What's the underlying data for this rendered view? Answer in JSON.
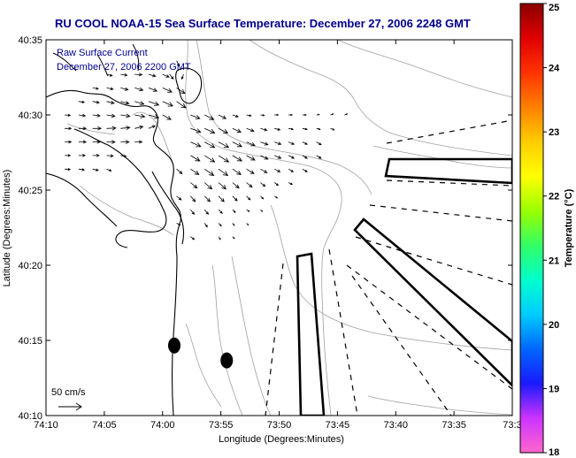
{
  "page": {
    "title": "RU COOL  NOAA-15  Sea Surface Temperature:  December 27, 2006 2248 GMT",
    "legend_line1": "Raw Surface Current",
    "legend_line2": "December 27, 2006 2200 GMT",
    "scale_label": "50 cm/s"
  },
  "chart_data": {
    "type": "quiver",
    "title": "RU COOL  NOAA-15  Sea Surface Temperature:  December 27, 2006 2248 GMT",
    "xlabel": "Longitude (Degrees:Minutes)",
    "ylabel": "Latitude (Degrees:Minutes)",
    "x_ticks": [
      "74:10",
      "74:05",
      "74:00",
      "73:55",
      "73:50",
      "73:45",
      "73:40",
      "73:35",
      "73:3"
    ],
    "y_ticks": [
      "40:10",
      "40:15",
      "40:20",
      "40:25",
      "40:30",
      "40:35"
    ],
    "xlim": [
      -74.1667,
      -73.5
    ],
    "ylim": [
      40.1667,
      40.5833
    ],
    "colorbar": {
      "label": "Temperature (°C)",
      "ticks": [
        "18",
        "19",
        "20",
        "21",
        "22",
        "23",
        "24",
        "25"
      ],
      "range": [
        18,
        25
      ],
      "colors": [
        "#ff66cc",
        "#cc33ff",
        "#1a1aff",
        "#0066ff",
        "#00ccff",
        "#00ffcc",
        "#33ff66",
        "#99ff00",
        "#ffff00",
        "#ffcc00",
        "#ff8000",
        "#ff3300",
        "#e00000",
        "#8b0000"
      ]
    },
    "vector_scale": {
      "label": "50 cm/s",
      "speed_cm_s": 50
    },
    "buoys": [
      {
        "lon": -73.9833,
        "lat": 40.2444
      },
      {
        "lon": -73.9083,
        "lat": 40.2278
      }
    ],
    "current_vectors": [
      {
        "lon": -74.08,
        "lat": 40.545,
        "u": 12,
        "v": -3
      },
      {
        "lon": -74.06,
        "lat": 40.545,
        "u": 14,
        "v": -2
      },
      {
        "lon": -74.04,
        "lat": 40.545,
        "u": 16,
        "v": -1
      },
      {
        "lon": -74.02,
        "lat": 40.545,
        "u": 15,
        "v": -4
      },
      {
        "lon": -74.0,
        "lat": 40.545,
        "u": 14,
        "v": -6
      },
      {
        "lon": -74.1,
        "lat": 40.53,
        "u": 12,
        "v": -2
      },
      {
        "lon": -74.08,
        "lat": 40.53,
        "u": 14,
        "v": -3
      },
      {
        "lon": -74.06,
        "lat": 40.53,
        "u": 16,
        "v": -4
      },
      {
        "lon": -74.04,
        "lat": 40.53,
        "u": 18,
        "v": -5
      },
      {
        "lon": -74.02,
        "lat": 40.53,
        "u": 18,
        "v": -7
      },
      {
        "lon": -74.0,
        "lat": 40.53,
        "u": 20,
        "v": -9
      },
      {
        "lon": -73.98,
        "lat": 40.53,
        "u": 18,
        "v": -12
      },
      {
        "lon": -74.12,
        "lat": 40.515,
        "u": 12,
        "v": -2
      },
      {
        "lon": -74.1,
        "lat": 40.515,
        "u": 14,
        "v": -3
      },
      {
        "lon": -74.08,
        "lat": 40.515,
        "u": 16,
        "v": -4
      },
      {
        "lon": -74.06,
        "lat": 40.515,
        "u": 18,
        "v": -5
      },
      {
        "lon": -74.04,
        "lat": 40.515,
        "u": 20,
        "v": -6
      },
      {
        "lon": -74.02,
        "lat": 40.515,
        "u": 22,
        "v": -8
      },
      {
        "lon": -74.0,
        "lat": 40.515,
        "u": 22,
        "v": -10
      },
      {
        "lon": -73.98,
        "lat": 40.515,
        "u": 20,
        "v": -14
      },
      {
        "lon": -74.14,
        "lat": 40.5,
        "u": 12,
        "v": -1
      },
      {
        "lon": -74.12,
        "lat": 40.5,
        "u": 14,
        "v": -2
      },
      {
        "lon": -74.1,
        "lat": 40.5,
        "u": 16,
        "v": -2
      },
      {
        "lon": -74.08,
        "lat": 40.5,
        "u": 18,
        "v": -3
      },
      {
        "lon": -74.06,
        "lat": 40.5,
        "u": 20,
        "v": -3
      },
      {
        "lon": -74.04,
        "lat": 40.5,
        "u": 22,
        "v": -4
      },
      {
        "lon": -74.02,
        "lat": 40.5,
        "u": 22,
        "v": -6
      },
      {
        "lon": -74.0,
        "lat": 40.5,
        "u": 18,
        "v": -10
      },
      {
        "lon": -74.14,
        "lat": 40.485,
        "u": 14,
        "v": 0
      },
      {
        "lon": -74.12,
        "lat": 40.485,
        "u": 16,
        "v": 0
      },
      {
        "lon": -74.1,
        "lat": 40.485,
        "u": 18,
        "v": 0
      },
      {
        "lon": -74.08,
        "lat": 40.485,
        "u": 20,
        "v": 1
      },
      {
        "lon": -74.06,
        "lat": 40.485,
        "u": 20,
        "v": 2
      },
      {
        "lon": -74.04,
        "lat": 40.485,
        "u": 18,
        "v": 4
      },
      {
        "lon": -74.02,
        "lat": 40.485,
        "u": 14,
        "v": 6
      },
      {
        "lon": -74.14,
        "lat": 40.47,
        "u": 14,
        "v": 0
      },
      {
        "lon": -74.12,
        "lat": 40.47,
        "u": 16,
        "v": 0
      },
      {
        "lon": -74.1,
        "lat": 40.47,
        "u": 16,
        "v": 0
      },
      {
        "lon": -74.08,
        "lat": 40.47,
        "u": 18,
        "v": 0
      },
      {
        "lon": -74.06,
        "lat": 40.47,
        "u": 18,
        "v": 0
      },
      {
        "lon": -74.04,
        "lat": 40.47,
        "u": 16,
        "v": 0
      },
      {
        "lon": -74.14,
        "lat": 40.455,
        "u": 12,
        "v": 0
      },
      {
        "lon": -74.12,
        "lat": 40.455,
        "u": 14,
        "v": 0
      },
      {
        "lon": -74.1,
        "lat": 40.455,
        "u": 14,
        "v": 0
      },
      {
        "lon": -74.08,
        "lat": 40.455,
        "u": 14,
        "v": -1
      },
      {
        "lon": -74.06,
        "lat": 40.455,
        "u": 12,
        "v": -2
      },
      {
        "lon": -74.14,
        "lat": 40.44,
        "u": 12,
        "v": -1
      },
      {
        "lon": -74.12,
        "lat": 40.44,
        "u": 12,
        "v": -2
      },
      {
        "lon": -74.1,
        "lat": 40.44,
        "u": 12,
        "v": -3
      },
      {
        "lon": -74.08,
        "lat": 40.44,
        "u": 10,
        "v": -4
      },
      {
        "lon": -73.96,
        "lat": 40.5,
        "u": 20,
        "v": -8
      },
      {
        "lon": -73.94,
        "lat": 40.5,
        "u": 20,
        "v": -10
      },
      {
        "lon": -73.92,
        "lat": 40.5,
        "u": 16,
        "v": -8
      },
      {
        "lon": -73.9,
        "lat": 40.5,
        "u": 12,
        "v": -4
      },
      {
        "lon": -73.88,
        "lat": 40.5,
        "u": 10,
        "v": -2
      },
      {
        "lon": -73.86,
        "lat": 40.5,
        "u": 8,
        "v": -1
      },
      {
        "lon": -73.84,
        "lat": 40.5,
        "u": 8,
        "v": 0
      },
      {
        "lon": -73.82,
        "lat": 40.5,
        "u": 8,
        "v": 0
      },
      {
        "lon": -73.8,
        "lat": 40.5,
        "u": 8,
        "v": 0
      },
      {
        "lon": -73.78,
        "lat": 40.5,
        "u": 6,
        "v": 1
      },
      {
        "lon": -73.76,
        "lat": 40.5,
        "u": 6,
        "v": 2
      },
      {
        "lon": -73.74,
        "lat": 40.5,
        "u": 6,
        "v": 2
      },
      {
        "lon": -73.96,
        "lat": 40.485,
        "u": 22,
        "v": -8
      },
      {
        "lon": -73.94,
        "lat": 40.485,
        "u": 22,
        "v": -10
      },
      {
        "lon": -73.92,
        "lat": 40.485,
        "u": 20,
        "v": -10
      },
      {
        "lon": -73.9,
        "lat": 40.485,
        "u": 18,
        "v": -8
      },
      {
        "lon": -73.88,
        "lat": 40.485,
        "u": 16,
        "v": -6
      },
      {
        "lon": -73.86,
        "lat": 40.485,
        "u": 14,
        "v": -4
      },
      {
        "lon": -73.84,
        "lat": 40.485,
        "u": 12,
        "v": -3
      },
      {
        "lon": -73.82,
        "lat": 40.485,
        "u": 10,
        "v": -2
      },
      {
        "lon": -73.8,
        "lat": 40.485,
        "u": 10,
        "v": -2
      },
      {
        "lon": -73.78,
        "lat": 40.485,
        "u": 8,
        "v": -2
      },
      {
        "lon": -73.76,
        "lat": 40.485,
        "u": 8,
        "v": -3
      },
      {
        "lon": -73.96,
        "lat": 40.47,
        "u": 22,
        "v": -10
      },
      {
        "lon": -73.94,
        "lat": 40.47,
        "u": 22,
        "v": -12
      },
      {
        "lon": -73.92,
        "lat": 40.47,
        "u": 22,
        "v": -12
      },
      {
        "lon": -73.9,
        "lat": 40.47,
        "u": 20,
        "v": -10
      },
      {
        "lon": -73.88,
        "lat": 40.47,
        "u": 18,
        "v": -8
      },
      {
        "lon": -73.86,
        "lat": 40.47,
        "u": 16,
        "v": -6
      },
      {
        "lon": -73.84,
        "lat": 40.47,
        "u": 14,
        "v": -5
      },
      {
        "lon": -73.82,
        "lat": 40.47,
        "u": 12,
        "v": -5
      },
      {
        "lon": -73.8,
        "lat": 40.47,
        "u": 10,
        "v": -5
      },
      {
        "lon": -73.78,
        "lat": 40.47,
        "u": 10,
        "v": -6
      },
      {
        "lon": -73.96,
        "lat": 40.455,
        "u": 20,
        "v": -12
      },
      {
        "lon": -73.94,
        "lat": 40.455,
        "u": 22,
        "v": -14
      },
      {
        "lon": -73.92,
        "lat": 40.455,
        "u": 22,
        "v": -14
      },
      {
        "lon": -73.9,
        "lat": 40.455,
        "u": 20,
        "v": -12
      },
      {
        "lon": -73.88,
        "lat": 40.455,
        "u": 18,
        "v": -10
      },
      {
        "lon": -73.86,
        "lat": 40.455,
        "u": 16,
        "v": -8
      },
      {
        "lon": -73.84,
        "lat": 40.455,
        "u": 14,
        "v": -6
      },
      {
        "lon": -73.82,
        "lat": 40.455,
        "u": 12,
        "v": -6
      },
      {
        "lon": -73.8,
        "lat": 40.455,
        "u": 10,
        "v": -6
      },
      {
        "lon": -73.78,
        "lat": 40.455,
        "u": 10,
        "v": -6
      },
      {
        "lon": -73.96,
        "lat": 40.44,
        "u": 18,
        "v": -12
      },
      {
        "lon": -73.94,
        "lat": 40.44,
        "u": 20,
        "v": -14
      },
      {
        "lon": -73.92,
        "lat": 40.44,
        "u": 20,
        "v": -14
      },
      {
        "lon": -73.9,
        "lat": 40.44,
        "u": 18,
        "v": -12
      },
      {
        "lon": -73.88,
        "lat": 40.44,
        "u": 16,
        "v": -10
      },
      {
        "lon": -73.86,
        "lat": 40.44,
        "u": 14,
        "v": -8
      },
      {
        "lon": -73.84,
        "lat": 40.44,
        "u": 12,
        "v": -6
      },
      {
        "lon": -73.82,
        "lat": 40.44,
        "u": 10,
        "v": -6
      },
      {
        "lon": -73.8,
        "lat": 40.44,
        "u": 10,
        "v": -6
      },
      {
        "lon": -73.96,
        "lat": 40.425,
        "u": 14,
        "v": -12
      },
      {
        "lon": -73.94,
        "lat": 40.425,
        "u": 16,
        "v": -14
      },
      {
        "lon": -73.92,
        "lat": 40.425,
        "u": 16,
        "v": -14
      },
      {
        "lon": -73.9,
        "lat": 40.425,
        "u": 14,
        "v": -12
      },
      {
        "lon": -73.88,
        "lat": 40.425,
        "u": 12,
        "v": -10
      },
      {
        "lon": -73.86,
        "lat": 40.425,
        "u": 10,
        "v": -8
      },
      {
        "lon": -73.84,
        "lat": 40.425,
        "u": 8,
        "v": -6
      },
      {
        "lon": -73.82,
        "lat": 40.425,
        "u": 8,
        "v": -4
      },
      {
        "lon": -73.96,
        "lat": 40.41,
        "u": 10,
        "v": -12
      },
      {
        "lon": -73.94,
        "lat": 40.41,
        "u": 12,
        "v": -12
      },
      {
        "lon": -73.92,
        "lat": 40.41,
        "u": 12,
        "v": -12
      },
      {
        "lon": -73.9,
        "lat": 40.41,
        "u": 10,
        "v": -10
      },
      {
        "lon": -73.88,
        "lat": 40.41,
        "u": 8,
        "v": -8
      },
      {
        "lon": -73.86,
        "lat": 40.41,
        "u": 6,
        "v": -6
      },
      {
        "lon": -73.84,
        "lat": 40.41,
        "u": 6,
        "v": -4
      },
      {
        "lon": -73.96,
        "lat": 40.395,
        "u": 8,
        "v": -10
      },
      {
        "lon": -73.94,
        "lat": 40.395,
        "u": 8,
        "v": -10
      },
      {
        "lon": -73.92,
        "lat": 40.395,
        "u": 8,
        "v": -8
      },
      {
        "lon": -73.9,
        "lat": 40.395,
        "u": 6,
        "v": -6
      },
      {
        "lon": -73.88,
        "lat": 40.395,
        "u": 6,
        "v": -4
      },
      {
        "lon": -73.86,
        "lat": 40.395,
        "u": 4,
        "v": -4
      },
      {
        "lon": -73.94,
        "lat": 40.38,
        "u": 6,
        "v": -8
      },
      {
        "lon": -73.92,
        "lat": 40.38,
        "u": 6,
        "v": -6
      },
      {
        "lon": -73.9,
        "lat": 40.38,
        "u": 4,
        "v": -5
      },
      {
        "lon": -73.88,
        "lat": 40.38,
        "u": 4,
        "v": -4
      },
      {
        "lon": -73.92,
        "lat": 40.365,
        "u": 4,
        "v": -6
      },
      {
        "lon": -73.9,
        "lat": 40.365,
        "u": 4,
        "v": -4
      },
      {
        "lon": -73.96,
        "lat": 40.365,
        "u": 8,
        "v": -6
      },
      {
        "lon": -73.98,
        "lat": 40.38,
        "u": 8,
        "v": -4
      },
      {
        "lon": -73.98,
        "lat": 40.41,
        "u": 10,
        "v": -8
      },
      {
        "lon": -73.98,
        "lat": 40.44,
        "u": 12,
        "v": -10
      },
      {
        "lon": -73.99,
        "lat": 40.545,
        "u": 8,
        "v": -10
      },
      {
        "lon": -73.98,
        "lat": 40.56,
        "u": 6,
        "v": -12
      },
      {
        "lon": -73.97,
        "lat": 40.545,
        "u": -4,
        "v": -10
      }
    ]
  }
}
